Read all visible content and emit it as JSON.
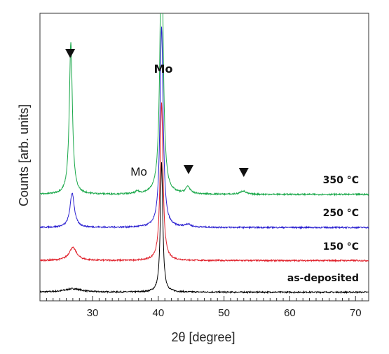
{
  "chart_data": {
    "type": "line",
    "xlabel": "2θ [degree]",
    "ylabel": "Counts [arb. units]",
    "xlim": [
      22,
      72
    ],
    "xticks": [
      "30",
      "40",
      "50",
      "60",
      "70"
    ],
    "grid": false,
    "series": [
      {
        "name": "as-deposited",
        "color": "#000000",
        "baseline": 0.03,
        "peaks": [
          [
            27.0,
            0.012,
            1.6
          ],
          [
            40.5,
            0.45,
            0.22
          ]
        ]
      },
      {
        "name": "150 °C",
        "color": "#e0202a",
        "baseline": 0.14,
        "peaks": [
          [
            27.0,
            0.045,
            0.7
          ],
          [
            40.5,
            0.55,
            0.26
          ]
        ]
      },
      {
        "name": "250 °C",
        "color": "#2a1fd0",
        "baseline": 0.255,
        "peaks": [
          [
            26.9,
            0.12,
            0.4
          ],
          [
            40.5,
            0.7,
            0.28
          ],
          [
            44.5,
            0.01,
            0.5
          ]
        ]
      },
      {
        "name": "350 °C",
        "color": "#1aa84a",
        "baseline": 0.37,
        "peaks": [
          [
            26.7,
            0.53,
            0.28
          ],
          [
            40.5,
            0.95,
            0.28
          ],
          [
            36.8,
            0.008,
            0.3
          ],
          [
            44.5,
            0.025,
            0.4
          ],
          [
            52.9,
            0.012,
            0.5
          ]
        ]
      }
    ],
    "annotations": {
      "mo_top": "Mo",
      "mo_small": "Mo",
      "markers": [
        26.6,
        44.6,
        53.0
      ]
    }
  }
}
